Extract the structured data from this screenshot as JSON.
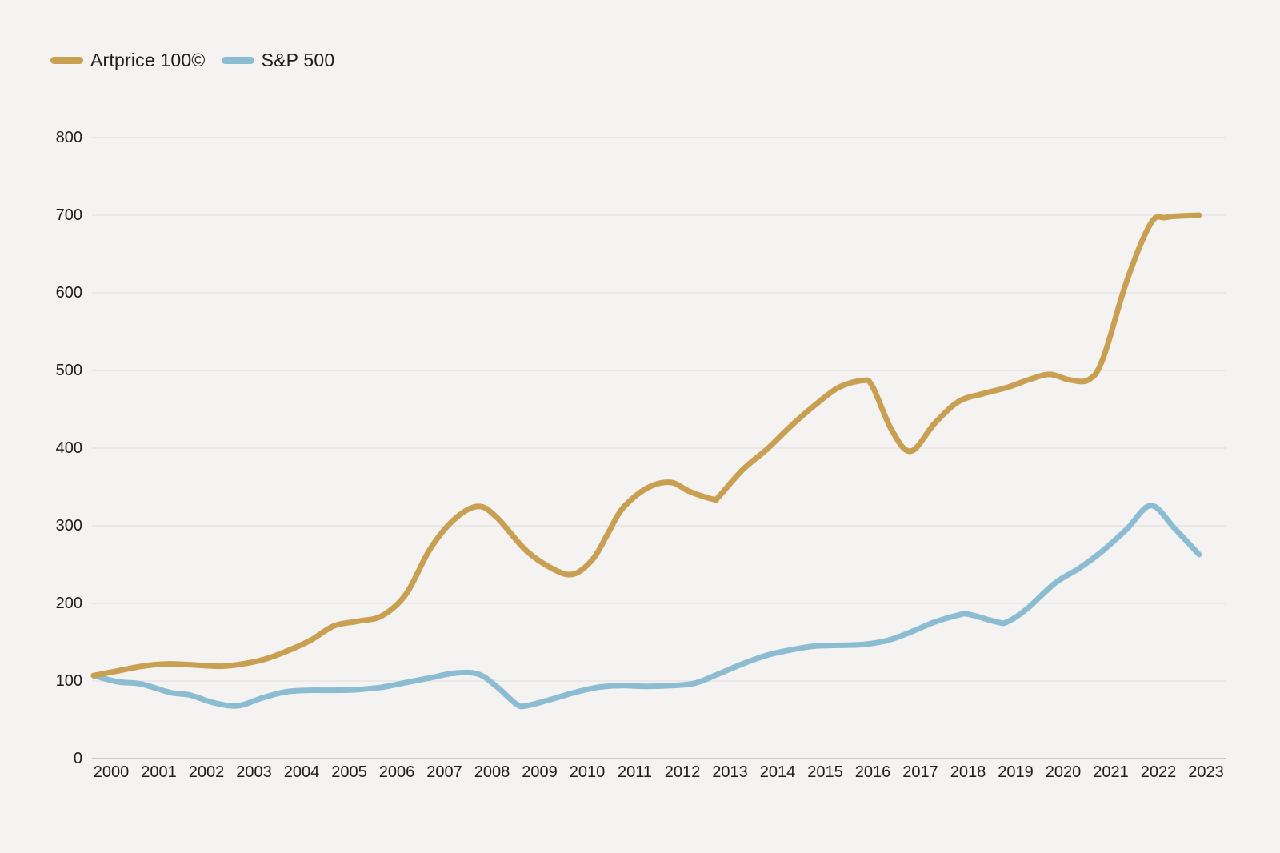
{
  "chart_data": {
    "type": "line",
    "title": "",
    "categories": [
      2000,
      2001,
      2002,
      2003,
      2004,
      2005,
      2006,
      2007,
      2008,
      2009,
      2010,
      2011,
      2012,
      2013,
      2014,
      2015,
      2016,
      2017,
      2018,
      2019,
      2020,
      2021,
      2022,
      2023
    ],
    "series": [
      {
        "name": "Artprice 100©",
        "color": "#C9A052",
        "values": [
          107,
          119,
          121,
          121,
          138,
          171,
          184,
          270,
          325,
          268,
          238,
          322,
          356,
          337,
          398,
          455,
          487,
          396,
          460,
          478,
          495,
          515,
          690,
          700
        ],
        "samples": [
          [
            2000,
            107
          ],
          [
            2000.5,
            113
          ],
          [
            2001,
            119
          ],
          [
            2001.5,
            122
          ],
          [
            2002,
            121
          ],
          [
            2002.6,
            119
          ],
          [
            2003,
            121
          ],
          [
            2003.5,
            127
          ],
          [
            2004,
            138
          ],
          [
            2004.5,
            152
          ],
          [
            2005,
            171
          ],
          [
            2005.5,
            177
          ],
          [
            2006,
            184
          ],
          [
            2006.5,
            212
          ],
          [
            2007,
            270
          ],
          [
            2007.5,
            308
          ],
          [
            2008,
            325
          ],
          [
            2008.4,
            310
          ],
          [
            2009,
            268
          ],
          [
            2009.6,
            243
          ],
          [
            2010,
            238
          ],
          [
            2010.4,
            258
          ],
          [
            2010.7,
            290
          ],
          [
            2011,
            322
          ],
          [
            2011.5,
            348
          ],
          [
            2012,
            356
          ],
          [
            2012.4,
            344
          ],
          [
            2012.9,
            334
          ],
          [
            2013,
            337
          ],
          [
            2013.5,
            372
          ],
          [
            2014,
            398
          ],
          [
            2014.5,
            428
          ],
          [
            2015,
            455
          ],
          [
            2015.5,
            478
          ],
          [
            2016,
            487
          ],
          [
            2016.2,
            480
          ],
          [
            2016.6,
            424
          ],
          [
            2017,
            396
          ],
          [
            2017.5,
            432
          ],
          [
            2018,
            460
          ],
          [
            2018.5,
            470
          ],
          [
            2019,
            478
          ],
          [
            2019.5,
            489
          ],
          [
            2019.9,
            495
          ],
          [
            2020.3,
            488
          ],
          [
            2020.7,
            488
          ],
          [
            2021,
            515
          ],
          [
            2021.5,
            616
          ],
          [
            2022,
            690
          ],
          [
            2022.3,
            697
          ],
          [
            2022.6,
            699
          ],
          [
            2023,
            700
          ]
        ]
      },
      {
        "name": "S&P 500",
        "color": "#8CBCD2",
        "values": [
          107,
          96,
          82,
          68,
          86,
          88,
          92,
          104,
          109,
          68,
          85,
          94,
          94,
          109,
          133,
          145,
          147,
          163,
          185,
          176,
          226,
          268,
          326,
          263
        ],
        "samples": [
          [
            2000,
            107
          ],
          [
            2000.5,
            99
          ],
          [
            2001,
            96
          ],
          [
            2001.6,
            85
          ],
          [
            2002,
            82
          ],
          [
            2002.5,
            72
          ],
          [
            2003,
            68
          ],
          [
            2003.5,
            78
          ],
          [
            2004,
            86
          ],
          [
            2004.5,
            88
          ],
          [
            2005,
            88
          ],
          [
            2005.5,
            89
          ],
          [
            2006,
            92
          ],
          [
            2006.5,
            98
          ],
          [
            2007,
            104
          ],
          [
            2007.5,
            110
          ],
          [
            2008,
            109
          ],
          [
            2008.4,
            92
          ],
          [
            2008.8,
            70
          ],
          [
            2009,
            68
          ],
          [
            2009.5,
            76
          ],
          [
            2010,
            85
          ],
          [
            2010.5,
            92
          ],
          [
            2011,
            94
          ],
          [
            2011.5,
            93
          ],
          [
            2012,
            94
          ],
          [
            2012.5,
            97
          ],
          [
            2013,
            109
          ],
          [
            2013.5,
            122
          ],
          [
            2014,
            133
          ],
          [
            2014.5,
            140
          ],
          [
            2015,
            145
          ],
          [
            2015.5,
            146
          ],
          [
            2016,
            147
          ],
          [
            2016.5,
            152
          ],
          [
            2017,
            163
          ],
          [
            2017.5,
            176
          ],
          [
            2018,
            185
          ],
          [
            2018.2,
            186
          ],
          [
            2018.8,
            176
          ],
          [
            2019,
            176
          ],
          [
            2019.4,
            192
          ],
          [
            2020,
            226
          ],
          [
            2020.5,
            245
          ],
          [
            2021,
            268
          ],
          [
            2021.5,
            296
          ],
          [
            2022,
            326
          ],
          [
            2022.5,
            296
          ],
          [
            2023,
            263
          ]
        ]
      }
    ],
    "ylim": [
      0,
      800
    ],
    "yticks": [
      0,
      100,
      200,
      300,
      400,
      500,
      600,
      700,
      800
    ],
    "grid": "horizontal",
    "legend_position": "top-left",
    "background_color": "#F4F3F1",
    "gridline_color": "#E3E2DF",
    "axis_line_color": "#CBCAC7",
    "text_color": "#1D1D1B"
  }
}
